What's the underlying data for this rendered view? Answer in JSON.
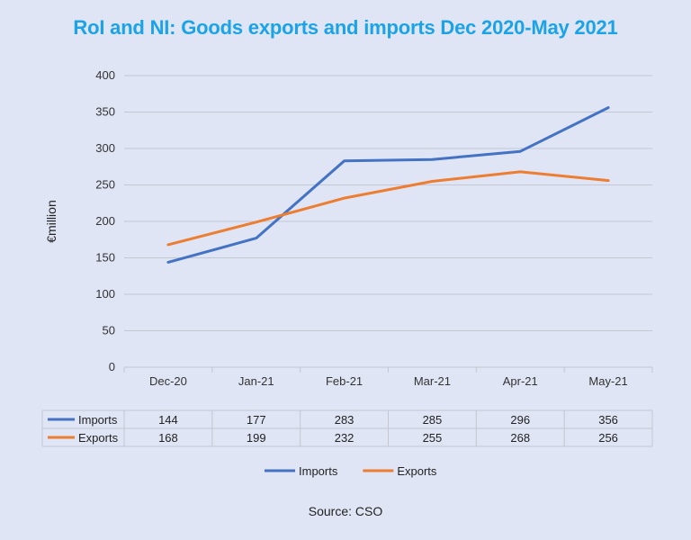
{
  "title": "RoI and NI: Goods exports and imports Dec 2020-May 2021",
  "source": "Source: CSO",
  "colors": {
    "Imports": "#4472c4",
    "Exports": "#ed7d31",
    "title": "#1aa3e8"
  },
  "chart_data": {
    "type": "line",
    "title": "RoI and NI: Goods exports and imports Dec 2020-May 2021",
    "xlabel": "",
    "ylabel": "€million",
    "ylim": [
      0,
      400
    ],
    "yticks": [
      0,
      50,
      100,
      150,
      200,
      250,
      300,
      350,
      400
    ],
    "grid": true,
    "legend": "bottom",
    "categories": [
      "Dec-20",
      "Jan-21",
      "Feb-21",
      "Mar-21",
      "Apr-21",
      "May-21"
    ],
    "series": [
      {
        "name": "Imports",
        "values": [
          144,
          177,
          283,
          285,
          296,
          356
        ]
      },
      {
        "name": "Exports",
        "values": [
          168,
          199,
          232,
          255,
          268,
          256
        ]
      }
    ],
    "data_table": true
  }
}
